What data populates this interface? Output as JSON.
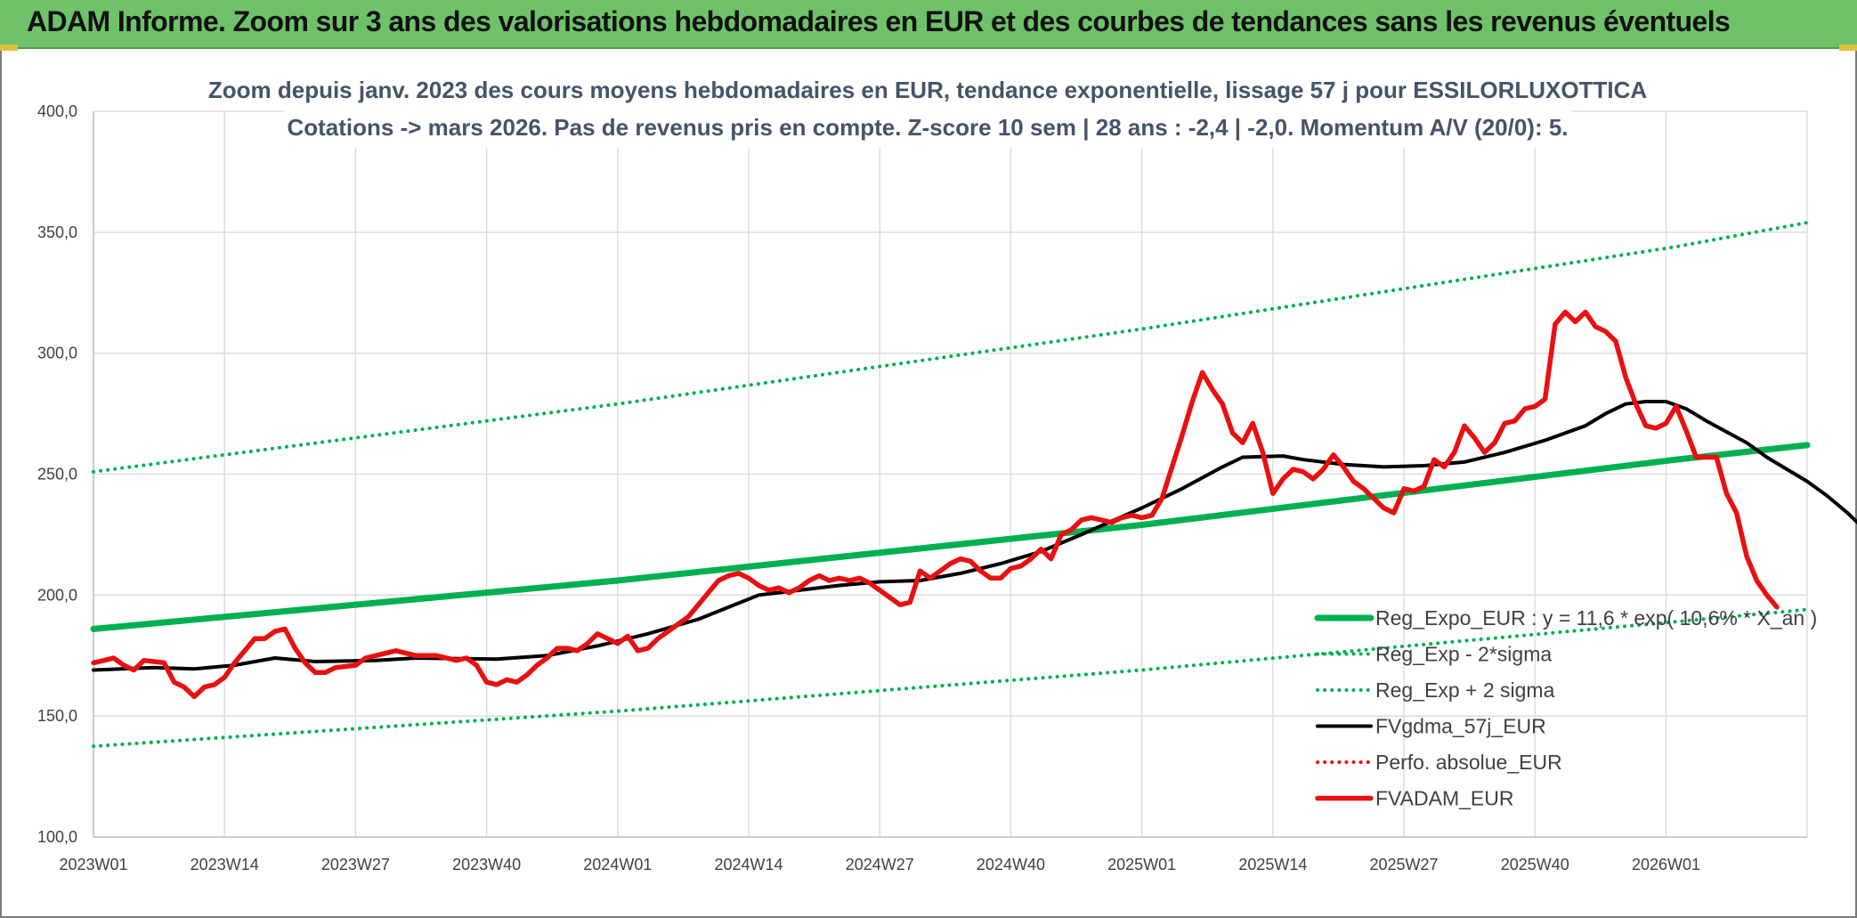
{
  "banner": {
    "title": "ADAM Informe. Zoom sur 3 ans des valorisations hebdomadaires en EUR et des courbes de tendances sans les revenus éventuels"
  },
  "chart_data": {
    "type": "line",
    "title_line1": "Zoom depuis janv. 2023 des cours moyens hebdomadaires en EUR, tendance exponentielle, lissage 57 j pour ESSILORLUXOTTICA",
    "title_line2": "Cotations -> mars 2026. Pas de revenus pris en compte. Z-score 10 sem | 28 ans : -2,4 | -2,0. Momentum A/V (20/0): 5.",
    "ylim": [
      100,
      400
    ],
    "yticks": [
      "100,0",
      "150,0",
      "200,0",
      "250,0",
      "300,0",
      "350,0",
      "400,0"
    ],
    "yticks_values": [
      100,
      150,
      200,
      250,
      300,
      350,
      400
    ],
    "xticks": [
      "2023W01",
      "2023W14",
      "2023W27",
      "2023W40",
      "2024W01",
      "2024W14",
      "2024W27",
      "2024W40",
      "2025W01",
      "2025W14",
      "2025W27",
      "2025W40",
      "2026W01"
    ],
    "xticks_index": [
      0,
      13,
      26,
      39,
      52,
      65,
      78,
      91,
      104,
      117,
      130,
      143,
      156
    ],
    "x_count": 171,
    "grid": true,
    "legend_position": "bottom-right",
    "colors": {
      "green": "#00b050",
      "black": "#000000",
      "red": "#e81010",
      "grid": "#d9d9d9",
      "axis": "#bfbfbf"
    },
    "series": [
      {
        "name": "Reg_Expo_EUR : y = 11,6 * exp( 10,6% * X_an )",
        "style": "solid-thick",
        "color": "#00b050",
        "keypoints": [
          [
            0,
            186
          ],
          [
            52,
            206
          ],
          [
            104,
            229
          ],
          [
            157,
            256
          ],
          [
            170,
            262
          ]
        ]
      },
      {
        "name": "Reg_Exp - 2*sigma",
        "style": "dotted",
        "color": "#00b050",
        "keypoints": [
          [
            0,
            137.5
          ],
          [
            52,
            152
          ],
          [
            104,
            169
          ],
          [
            157,
            189
          ],
          [
            170,
            194
          ]
        ]
      },
      {
        "name": "Reg_Exp + 2 sigma",
        "style": "dotted",
        "color": "#00b050",
        "keypoints": [
          [
            0,
            251
          ],
          [
            52,
            279
          ],
          [
            104,
            310
          ],
          [
            157,
            344
          ],
          [
            170,
            354
          ]
        ]
      },
      {
        "name": "FVgdma_57j_EUR",
        "style": "solid",
        "color": "#000000",
        "keypoints": [
          [
            0,
            169
          ],
          [
            6,
            170
          ],
          [
            10,
            169.5
          ],
          [
            14,
            171
          ],
          [
            18,
            174
          ],
          [
            22,
            172.5
          ],
          [
            28,
            173
          ],
          [
            32,
            174
          ],
          [
            40,
            173.5
          ],
          [
            45,
            175
          ],
          [
            50,
            179
          ],
          [
            55,
            184
          ],
          [
            60,
            190
          ],
          [
            63,
            195
          ],
          [
            66,
            200
          ],
          [
            70,
            202
          ],
          [
            74,
            204
          ],
          [
            78,
            205.5
          ],
          [
            82,
            206
          ],
          [
            86,
            209
          ],
          [
            90,
            213
          ],
          [
            94,
            218
          ],
          [
            98,
            225
          ],
          [
            104,
            236
          ],
          [
            108,
            244
          ],
          [
            112,
            253
          ],
          [
            114,
            257
          ],
          [
            118,
            257.5
          ],
          [
            120,
            256
          ],
          [
            124,
            254
          ],
          [
            128,
            253
          ],
          [
            132,
            253.5
          ],
          [
            136,
            255
          ],
          [
            140,
            259
          ],
          [
            144,
            264
          ],
          [
            148,
            270
          ],
          [
            150,
            275
          ],
          [
            152,
            279
          ],
          [
            154,
            280
          ],
          [
            156,
            280
          ],
          [
            158,
            277
          ],
          [
            160,
            272
          ],
          [
            164,
            263
          ],
          [
            166,
            257
          ],
          [
            168,
            252
          ],
          [
            170,
            247
          ],
          [
            172,
            241
          ],
          [
            174,
            234
          ],
          [
            176,
            226
          ],
          [
            177,
            222
          ],
          [
            178,
            218
          ]
        ]
      },
      {
        "name": "Perfo. absolue_EUR",
        "style": "dotted",
        "color": "#e81010",
        "keypoints": []
      },
      {
        "name": "FVADAM_EUR",
        "style": "solid-thick",
        "color": "#e81010",
        "keypoints": [
          [
            0,
            172
          ],
          [
            2,
            174
          ],
          [
            3,
            171
          ],
          [
            4,
            169
          ],
          [
            5,
            173
          ],
          [
            7,
            172
          ],
          [
            8,
            164
          ],
          [
            9,
            162
          ],
          [
            10,
            158
          ],
          [
            11,
            162
          ],
          [
            12,
            163
          ],
          [
            13,
            166
          ],
          [
            14,
            172
          ],
          [
            15,
            177
          ],
          [
            16,
            182
          ],
          [
            17,
            182
          ],
          [
            18,
            185
          ],
          [
            19,
            186
          ],
          [
            20,
            178
          ],
          [
            21,
            172
          ],
          [
            22,
            168
          ],
          [
            23,
            168
          ],
          [
            24,
            170
          ],
          [
            26,
            171
          ],
          [
            27,
            174
          ],
          [
            28,
            175
          ],
          [
            30,
            177
          ],
          [
            32,
            175
          ],
          [
            34,
            175
          ],
          [
            36,
            173
          ],
          [
            37,
            174
          ],
          [
            38,
            171
          ],
          [
            39,
            164
          ],
          [
            40,
            163
          ],
          [
            41,
            165
          ],
          [
            42,
            164
          ],
          [
            43,
            167
          ],
          [
            44,
            171
          ],
          [
            45,
            174
          ],
          [
            46,
            178
          ],
          [
            47,
            178
          ],
          [
            48,
            177
          ],
          [
            49,
            180
          ],
          [
            50,
            184
          ],
          [
            51,
            182
          ],
          [
            52,
            180
          ],
          [
            53,
            183
          ],
          [
            54,
            177
          ],
          [
            55,
            178
          ],
          [
            56,
            182
          ],
          [
            57,
            185
          ],
          [
            58,
            188
          ],
          [
            59,
            191
          ],
          [
            60,
            196
          ],
          [
            61,
            201
          ],
          [
            62,
            206
          ],
          [
            63,
            208
          ],
          [
            64,
            209
          ],
          [
            65,
            207
          ],
          [
            66,
            204
          ],
          [
            67,
            202
          ],
          [
            68,
            203
          ],
          [
            69,
            201
          ],
          [
            70,
            203
          ],
          [
            71,
            206
          ],
          [
            72,
            208
          ],
          [
            73,
            206
          ],
          [
            74,
            207
          ],
          [
            75,
            206
          ],
          [
            76,
            207
          ],
          [
            77,
            205
          ],
          [
            78,
            202
          ],
          [
            79,
            199
          ],
          [
            80,
            196
          ],
          [
            81,
            197
          ],
          [
            82,
            210
          ],
          [
            83,
            207
          ],
          [
            84,
            210
          ],
          [
            85,
            213
          ],
          [
            86,
            215
          ],
          [
            87,
            214
          ],
          [
            88,
            210
          ],
          [
            89,
            207
          ],
          [
            90,
            207
          ],
          [
            91,
            211
          ],
          [
            92,
            212
          ],
          [
            93,
            215
          ],
          [
            94,
            219
          ],
          [
            95,
            215
          ],
          [
            96,
            225
          ],
          [
            97,
            227
          ],
          [
            98,
            231
          ],
          [
            99,
            232
          ],
          [
            100,
            231
          ],
          [
            101,
            230
          ],
          [
            102,
            232
          ],
          [
            103,
            233
          ],
          [
            104,
            232
          ],
          [
            105,
            233
          ],
          [
            106,
            240
          ],
          [
            107,
            253
          ],
          [
            108,
            266
          ],
          [
            109,
            280
          ],
          [
            110,
            292
          ],
          [
            111,
            285
          ],
          [
            112,
            279
          ],
          [
            113,
            267
          ],
          [
            114,
            263
          ],
          [
            115,
            271
          ],
          [
            116,
            259
          ],
          [
            117,
            242
          ],
          [
            118,
            248
          ],
          [
            119,
            252
          ],
          [
            120,
            251
          ],
          [
            121,
            248
          ],
          [
            122,
            252
          ],
          [
            123,
            258
          ],
          [
            124,
            253
          ],
          [
            125,
            247
          ],
          [
            126,
            244
          ],
          [
            127,
            240
          ],
          [
            128,
            236
          ],
          [
            129,
            234
          ],
          [
            130,
            244
          ],
          [
            131,
            243
          ],
          [
            132,
            245
          ],
          [
            133,
            256
          ],
          [
            134,
            253
          ],
          [
            135,
            259
          ],
          [
            136,
            270
          ],
          [
            137,
            265
          ],
          [
            138,
            259
          ],
          [
            139,
            263
          ],
          [
            140,
            271
          ],
          [
            141,
            272
          ],
          [
            142,
            277
          ],
          [
            143,
            278
          ],
          [
            144,
            281
          ],
          [
            145,
            312
          ],
          [
            146,
            317
          ],
          [
            147,
            313
          ],
          [
            148,
            317
          ],
          [
            149,
            311
          ],
          [
            150,
            309
          ],
          [
            151,
            305
          ],
          [
            152,
            290
          ],
          [
            153,
            279
          ],
          [
            154,
            270
          ],
          [
            155,
            269
          ],
          [
            156,
            271
          ],
          [
            157,
            278
          ],
          [
            158,
            268
          ],
          [
            159,
            257
          ],
          [
            160,
            257
          ],
          [
            161,
            257
          ],
          [
            162,
            242
          ],
          [
            163,
            234
          ],
          [
            164,
            216
          ],
          [
            165,
            206
          ],
          [
            166,
            200
          ],
          [
            167,
            195
          ]
        ]
      }
    ]
  }
}
